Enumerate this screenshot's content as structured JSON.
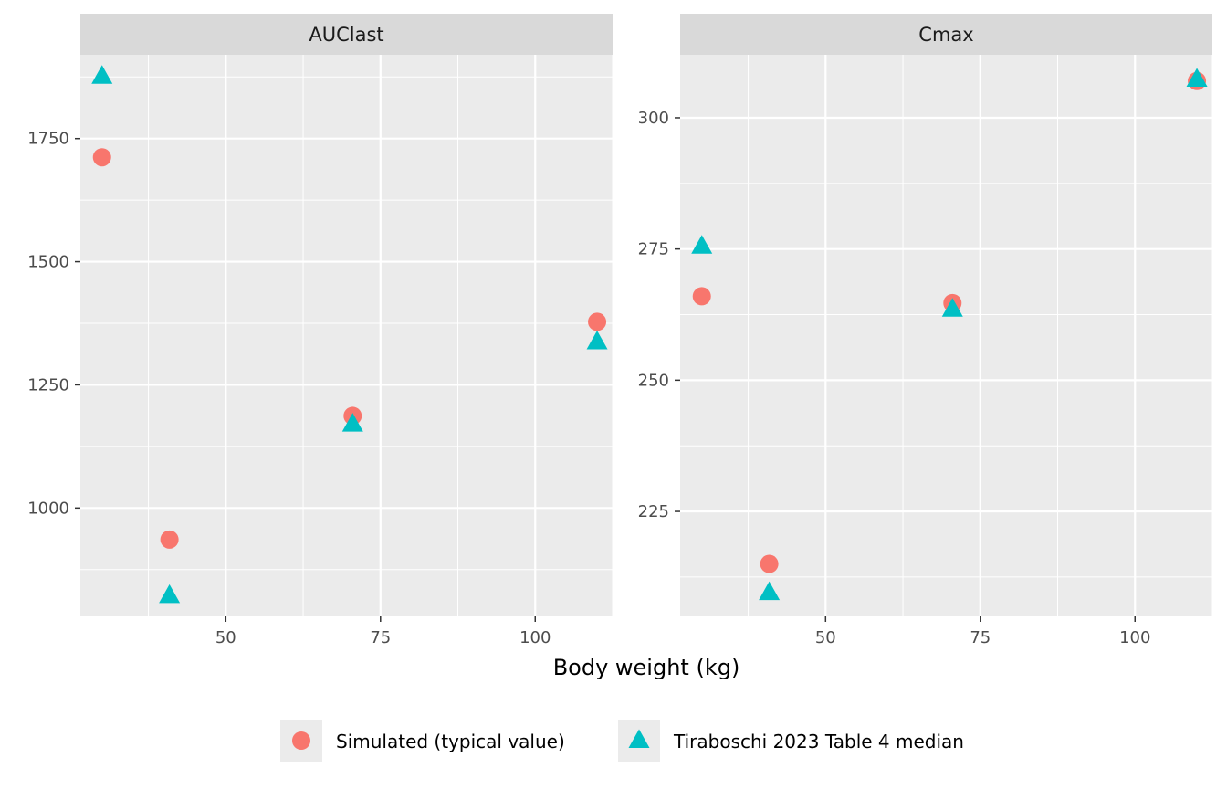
{
  "chart_data": {
    "type": "scatter",
    "xlabel": "Body weight (kg)",
    "ylabel": "",
    "legend_position": "bottom",
    "grid": true,
    "series_styles": [
      {
        "key": "simulated",
        "name": "Simulated (typical value)",
        "shape": "circle",
        "color": "#F8766D"
      },
      {
        "key": "observed",
        "name": "Tiraboschi 2023 Table 4 median",
        "shape": "triangle",
        "color": "#00BFC4"
      }
    ],
    "panels": [
      {
        "title": "AUClast",
        "xlim": [
          26.5,
          112.5
        ],
        "ylim": [
          780,
          1920
        ],
        "x_ticks": [
          50,
          75,
          100
        ],
        "y_ticks": [
          1000,
          1250,
          1500,
          1750
        ],
        "series": [
          {
            "key": "simulated",
            "x": [
              30,
              40.9,
              70.5,
              110
            ],
            "y": [
              1712,
              936,
              1187,
              1378
            ]
          },
          {
            "key": "observed",
            "x": [
              30,
              40.9,
              70.5,
              110
            ],
            "y": [
              1876,
              822,
              1170,
              1337
            ]
          }
        ]
      },
      {
        "title": "Cmax",
        "xlim": [
          26.5,
          112.5
        ],
        "ylim": [
          205,
          312
        ],
        "x_ticks": [
          50,
          75,
          100
        ],
        "y_ticks": [
          225,
          250,
          275,
          300
        ],
        "series": [
          {
            "key": "simulated",
            "x": [
              30,
              40.9,
              70.5,
              110
            ],
            "y": [
              266,
              215,
              264.7,
              307
            ]
          },
          {
            "key": "observed",
            "x": [
              30,
              40.9,
              70.5,
              110
            ],
            "y": [
              275.5,
              209.5,
              263.5,
              307.3
            ]
          }
        ]
      }
    ]
  }
}
